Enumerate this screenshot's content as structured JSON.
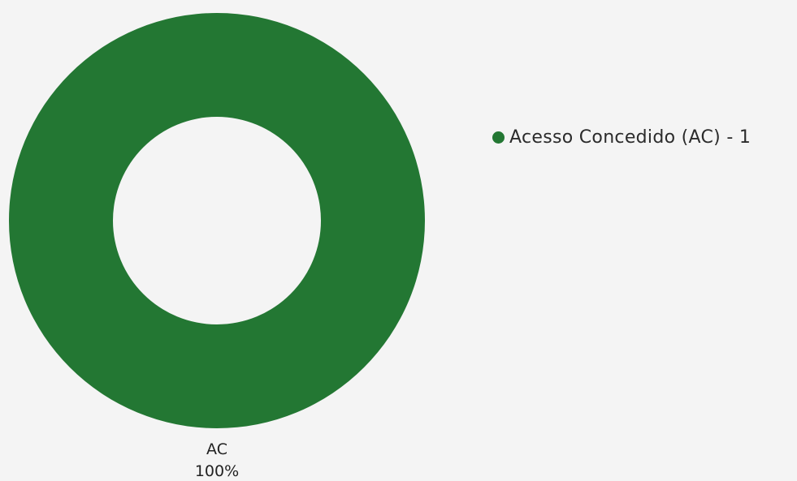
{
  "chart_data": {
    "type": "pie",
    "style": "donut",
    "slices": [
      {
        "short_label": "AC",
        "percent_label": "100%",
        "value": 1,
        "percent": 100,
        "color": "#237733",
        "legend_label": "Acesso Concedido (AC) - 1"
      }
    ],
    "legend_placement": "right"
  }
}
